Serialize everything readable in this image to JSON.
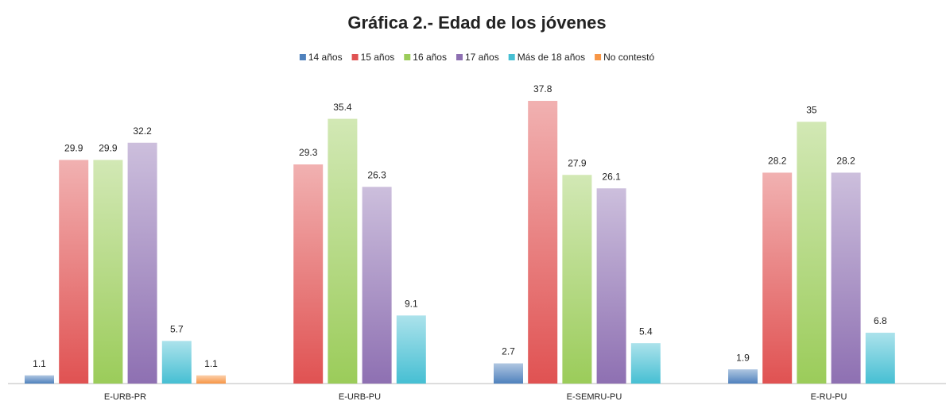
{
  "chart_data": {
    "type": "bar",
    "title": "Gráfica 2.- Edad de los jóvenes",
    "categories": [
      "E-URB-PR",
      "E-URB-PU",
      "E-SEMRU-PU",
      "E-RU-PU"
    ],
    "series": [
      {
        "name": "14 años",
        "color": "#4f81bd",
        "values": [
          1.1,
          null,
          2.7,
          1.9
        ]
      },
      {
        "name": "15 años",
        "color": "#e05252",
        "values": [
          29.9,
          29.3,
          37.8,
          28.2
        ]
      },
      {
        "name": "16 años",
        "color": "#9bcc5a",
        "values": [
          29.9,
          35.4,
          27.9,
          35
        ]
      },
      {
        "name": "17 años",
        "color": "#8e70b2",
        "values": [
          32.2,
          26.3,
          26.1,
          28.2
        ]
      },
      {
        "name": "Más de 18 años",
        "color": "#46bfd3",
        "values": [
          5.7,
          9.1,
          5.4,
          6.8
        ]
      },
      {
        "name": "No contestó",
        "color": "#f79646",
        "values": [
          1.1,
          null,
          null,
          null
        ]
      }
    ]
  }
}
